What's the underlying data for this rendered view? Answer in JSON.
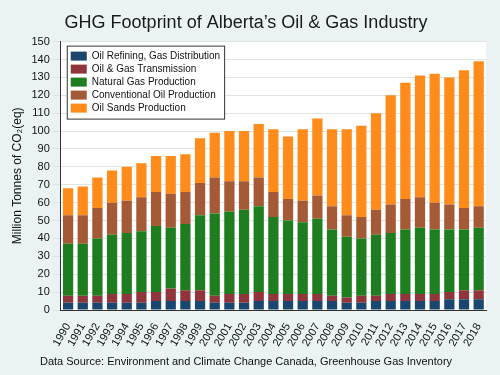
{
  "chart_data": {
    "type": "bar",
    "stacked": true,
    "title": "GHG Footprint of Alberta’s Oil & Gas Industry",
    "y_label": "Million Tonnes of CO₂(eq)",
    "caption": "Data Source: Environment and Climate Change Canada, Greenhouse Gas Inventory",
    "categories": [
      "1990",
      "1991",
      "1992",
      "1993",
      "1994",
      "1995",
      "1996",
      "1997",
      "1998",
      "1999",
      "2000",
      "2001",
      "2002",
      "2003",
      "2004",
      "2005",
      "2006",
      "2007",
      "2008",
      "2009",
      "2010",
      "2011",
      "2012",
      "2013",
      "2014",
      "2015",
      "2016",
      "2017",
      "2018"
    ],
    "series": [
      {
        "name": "Oil Refining, Gas Distribution",
        "color": "#1a476f",
        "values": [
          4,
          4,
          4,
          4,
          4,
          4,
          5,
          5,
          5,
          5,
          4,
          4,
          4,
          5,
          5,
          5,
          5,
          5,
          5,
          4,
          4,
          5,
          5,
          5,
          5,
          5,
          6,
          6,
          6
        ]
      },
      {
        "name": "Oil & Gas Transmission",
        "color": "#90353b",
        "values": [
          4,
          4,
          4,
          5,
          5,
          6,
          5,
          7,
          6,
          6,
          4,
          5,
          5,
          5,
          4,
          4,
          4,
          4,
          3,
          3,
          4,
          3,
          4,
          4,
          4,
          4,
          4,
          5,
          5
        ]
      },
      {
        "name": "Natural Gas Production",
        "color": "#1e7d1e",
        "values": [
          29,
          29,
          32,
          33,
          34,
          34,
          37,
          34,
          37,
          42,
          46,
          46,
          47,
          48,
          43,
          41,
          40,
          42,
          37,
          34,
          32,
          34,
          34,
          36,
          37,
          36,
          35,
          34,
          35
        ]
      },
      {
        "name": "Conventional Oil Production",
        "color": "#a35a35",
        "values": [
          16,
          16,
          17,
          18,
          18,
          19,
          19,
          19,
          18,
          18,
          20,
          17,
          16,
          16,
          14,
          12,
          12,
          13,
          13,
          12,
          12,
          14,
          16,
          17,
          17,
          15,
          14,
          12,
          12
        ]
      },
      {
        "name": "Oil Sands Production",
        "color": "#ff8c1a",
        "values": [
          15,
          16,
          17,
          18,
          19,
          19,
          20,
          21,
          21,
          25,
          25,
          28,
          28,
          30,
          35,
          35,
          40,
          43,
          43,
          48,
          51,
          54,
          61,
          65,
          68,
          72,
          71,
          77,
          81
        ]
      }
    ],
    "ylim": [
      0,
      150
    ],
    "yticks": [
      0,
      10,
      20,
      30,
      40,
      50,
      60,
      70,
      80,
      90,
      100,
      110,
      120,
      130,
      140,
      150
    ],
    "grid": true,
    "legend": "top-left"
  }
}
